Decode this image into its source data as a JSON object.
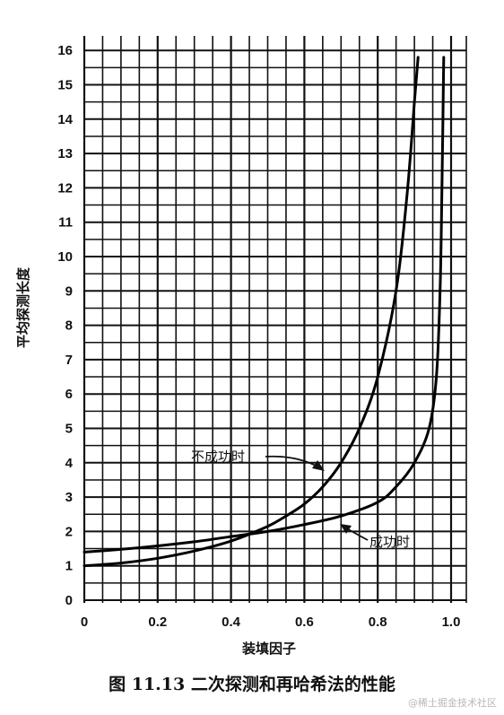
{
  "chart_data": {
    "type": "line",
    "xlabel": "装填因子",
    "ylabel": "平均探测长度",
    "xlim": [
      0,
      1.0
    ],
    "ylim": [
      0,
      16.6
    ],
    "x_ticks": [
      "0",
      "0.2",
      "0.4",
      "0.6",
      "0.8",
      "1.0"
    ],
    "y_ticks": [
      "0",
      "1",
      "2",
      "3",
      "4",
      "5",
      "6",
      "7",
      "8",
      "9",
      "10",
      "11",
      "12",
      "13",
      "14",
      "15",
      "16"
    ],
    "grid": true,
    "series": [
      {
        "name": "不成功时",
        "x": [
          0,
          0.1,
          0.2,
          0.3,
          0.4,
          0.5,
          0.55,
          0.6,
          0.65,
          0.7,
          0.75,
          0.8,
          0.85,
          0.88,
          0.9,
          0.91
        ],
        "y": [
          1.0,
          1.08,
          1.22,
          1.43,
          1.72,
          2.15,
          2.45,
          2.8,
          3.3,
          4.0,
          5.0,
          6.5,
          9.0,
          11.8,
          14.5,
          15.8
        ]
      },
      {
        "name": "成功时",
        "x": [
          0,
          0.1,
          0.2,
          0.3,
          0.4,
          0.5,
          0.6,
          0.7,
          0.8,
          0.85,
          0.9,
          0.94,
          0.96,
          0.97,
          0.975,
          0.98
        ],
        "y": [
          1.4,
          1.48,
          1.58,
          1.7,
          1.85,
          2.0,
          2.2,
          2.45,
          2.85,
          3.3,
          4.0,
          5.0,
          6.5,
          9.0,
          12.0,
          15.8
        ]
      }
    ],
    "annotations": [
      {
        "text": "不成功时",
        "series": "不成功时"
      },
      {
        "text": "成功时",
        "series": "成功时"
      }
    ],
    "caption": "图 11.13    二次探测和再哈希法的性能"
  },
  "watermark": "@稀土掘金技术社区"
}
